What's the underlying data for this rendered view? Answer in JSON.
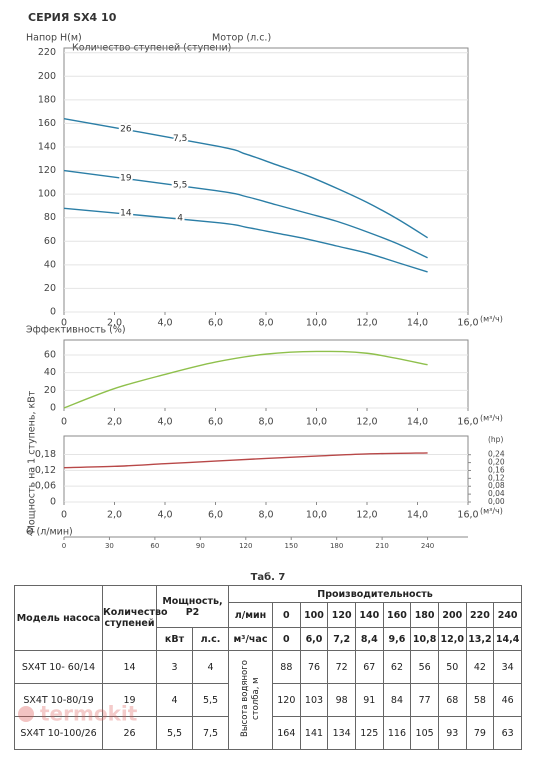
{
  "title": "СЕРИЯ SX4 10",
  "chart_data": [
    {
      "type": "line",
      "ylabel": "Напор Н(м)",
      "stages_label": "Количество ступеней (ступени)",
      "motor_label": "Мотор (л.с.)",
      "x_unit": "(м³/ч)",
      "xlim": [
        0,
        16
      ],
      "xticks": [
        0,
        {
          "value": 2,
          "label": "2,0"
        },
        {
          "value": 4,
          "label": "4,0"
        },
        {
          "value": 6,
          "label": "6,0"
        },
        {
          "value": 8,
          "label": "8,0"
        },
        {
          "value": 10,
          "label": "10,0"
        },
        {
          "value": 12,
          "label": "12,0"
        },
        {
          "value": 14,
          "label": "14,0"
        },
        {
          "value": 16,
          "label": "16,0"
        }
      ],
      "ylim": [
        0,
        224
      ],
      "yticks": [
        0,
        20,
        40,
        60,
        80,
        100,
        120,
        140,
        160,
        180,
        200,
        220
      ],
      "grid": true,
      "x": [
        0,
        6,
        7.2,
        8.4,
        9.6,
        10.8,
        12,
        13.2,
        14.4
      ],
      "series": [
        {
          "name": "26",
          "motor": "7,5",
          "color": "#2b7ea6",
          "values": [
            164,
            141,
            134,
            125,
            116,
            105,
            93,
            79,
            63
          ]
        },
        {
          "name": "19",
          "motor": "5,5",
          "color": "#2b7ea6",
          "values": [
            120,
            103,
            98,
            91,
            84,
            77,
            68,
            58,
            46
          ]
        },
        {
          "name": "14",
          "motor": "4",
          "color": "#2b7ea6",
          "values": [
            88,
            76,
            72,
            67,
            62,
            56,
            50,
            42,
            34
          ]
        }
      ]
    },
    {
      "type": "line",
      "ylabel": "Эффективность (%)",
      "x_unit": "(м³/ч)",
      "xlim": [
        0,
        16
      ],
      "xticks": [
        0,
        {
          "value": 2,
          "label": "2,0"
        },
        {
          "value": 4,
          "label": "4,0"
        },
        {
          "value": 6,
          "label": "6,0"
        },
        {
          "value": 8,
          "label": "8,0"
        },
        {
          "value": 10,
          "label": "10,0"
        },
        {
          "value": 12,
          "label": "12,0"
        },
        {
          "value": 14,
          "label": "14,0"
        },
        {
          "value": 16,
          "label": "16,0"
        }
      ],
      "ylim": [
        0,
        77
      ],
      "yticks": [
        0,
        20,
        40,
        60
      ],
      "grid": true,
      "x": [
        0,
        2,
        4,
        6,
        8,
        10,
        12,
        14.4
      ],
      "series": [
        {
          "color": "#8fc04c",
          "values": [
            0,
            22,
            38,
            52,
            61,
            64,
            62,
            49
          ]
        }
      ]
    },
    {
      "type": "line",
      "ylabel": "Мощность на 1 ступень, кВт",
      "y2label": "(hp)",
      "x_unit": "(м³/ч)",
      "x2label": "Q (л/мин)",
      "xlim": [
        0,
        16
      ],
      "xticks": [
        0,
        {
          "value": 2,
          "label": "2,0"
        },
        {
          "value": 4,
          "label": "4,0"
        },
        {
          "value": 6,
          "label": "6,0"
        },
        {
          "value": 8,
          "label": "8,0"
        },
        {
          "value": 10,
          "label": "10,0"
        },
        {
          "value": 12,
          "label": "12,0"
        },
        {
          "value": 14,
          "label": "14,0"
        },
        {
          "value": 16,
          "label": "16,0"
        }
      ],
      "x2lim": [
        0,
        266.7
      ],
      "x2ticks": [
        0,
        30,
        60,
        90,
        120,
        150,
        180,
        210,
        240
      ],
      "ylim": [
        0,
        0.25
      ],
      "yticks": [
        0,
        {
          "value": 0.06,
          "label": "0,06"
        },
        {
          "value": 0.12,
          "label": "0,12"
        },
        {
          "value": 0.18,
          "label": "0,18"
        }
      ],
      "y2lim": [
        0,
        0.335
      ],
      "y2ticks": [
        {
          "value": 0,
          "label": "0,00"
        },
        {
          "value": 0.04,
          "label": "0,04"
        },
        {
          "value": 0.08,
          "label": "0,08"
        },
        {
          "value": 0.12,
          "label": "0,12"
        },
        {
          "value": 0.16,
          "label": "0,16"
        },
        {
          "value": 0.2,
          "label": "0,20"
        },
        {
          "value": 0.24,
          "label": "0,24"
        }
      ],
      "grid": true,
      "x": [
        0,
        2,
        4,
        6,
        8,
        10,
        12,
        14.4
      ],
      "series": [
        {
          "color": "#b84848",
          "values": [
            0.13,
            0.135,
            0.145,
            0.155,
            0.165,
            0.174,
            0.182,
            0.186
          ]
        }
      ]
    }
  ],
  "table": {
    "caption": "Таб. 7",
    "headers": {
      "model": "Модель насоса",
      "stages": "Количество ступеней",
      "power": "Мощность, Р2",
      "kw": "кВт",
      "hp": "л.с.",
      "performance": "Производительность",
      "lpm": "л/мин",
      "m3h": "м³/час",
      "head": "Высота водяного столба, м"
    },
    "lpm": [
      0,
      100,
      120,
      140,
      160,
      180,
      200,
      220,
      240
    ],
    "m3h": [
      "0",
      "6,0",
      "7,2",
      "8,4",
      "9,6",
      "10,8",
      "12,0",
      "13,2",
      "14,4"
    ],
    "rows": [
      {
        "model": "SX4T 10- 60/14",
        "stages": 14,
        "kw": "3",
        "hp": "4",
        "head": [
          88,
          76,
          72,
          67,
          62,
          56,
          50,
          42,
          34
        ]
      },
      {
        "model": "SX4T 10-80/19",
        "stages": 19,
        "kw": "4",
        "hp": "5,5",
        "head": [
          120,
          103,
          98,
          91,
          84,
          77,
          68,
          58,
          46
        ]
      },
      {
        "model": "SX4T 10-100/26",
        "stages": 26,
        "kw": "5,5",
        "hp": "7,5",
        "head": [
          164,
          141,
          134,
          125,
          116,
          105,
          93,
          79,
          63
        ]
      }
    ]
  },
  "watermark": "termokit"
}
